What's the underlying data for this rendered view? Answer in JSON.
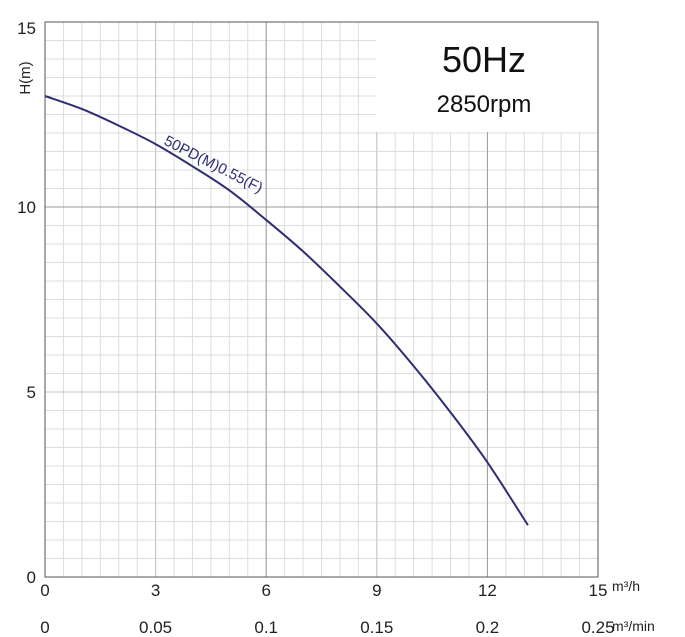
{
  "chart_data": {
    "type": "line",
    "ylabel": "H(m)",
    "xlim": [
      0,
      15
    ],
    "ylim": [
      0,
      15
    ],
    "x_ticks": [
      "0",
      "3",
      "6",
      "9",
      "12",
      "15"
    ],
    "x_tick_values": [
      0,
      3,
      6,
      9,
      12,
      15
    ],
    "x_unit": "m³/h",
    "x2_ticks": [
      "0",
      "0.05",
      "0.1",
      "0.15",
      "0.2",
      "0.25"
    ],
    "x2_unit": "m³/min",
    "y_ticks": [
      "0",
      "5",
      "10",
      "15"
    ],
    "y_tick_values": [
      0,
      5,
      10,
      15
    ],
    "grid": true,
    "annotations": {
      "frequency": "50Hz",
      "speed": "2850rpm"
    },
    "series": [
      {
        "name": "50PD(M)0.55(F)",
        "x": [
          0,
          1,
          2,
          3,
          4,
          5,
          6,
          7,
          8,
          9,
          10,
          11,
          12,
          13.1
        ],
        "y": [
          13.0,
          12.65,
          12.2,
          11.7,
          11.1,
          10.45,
          9.65,
          8.8,
          7.85,
          6.85,
          5.7,
          4.45,
          3.1,
          1.4
        ]
      }
    ],
    "colors": {
      "curve": "#2e2e72",
      "grid_major": "#9a9a9a",
      "grid_minor": "#dddddd"
    }
  }
}
